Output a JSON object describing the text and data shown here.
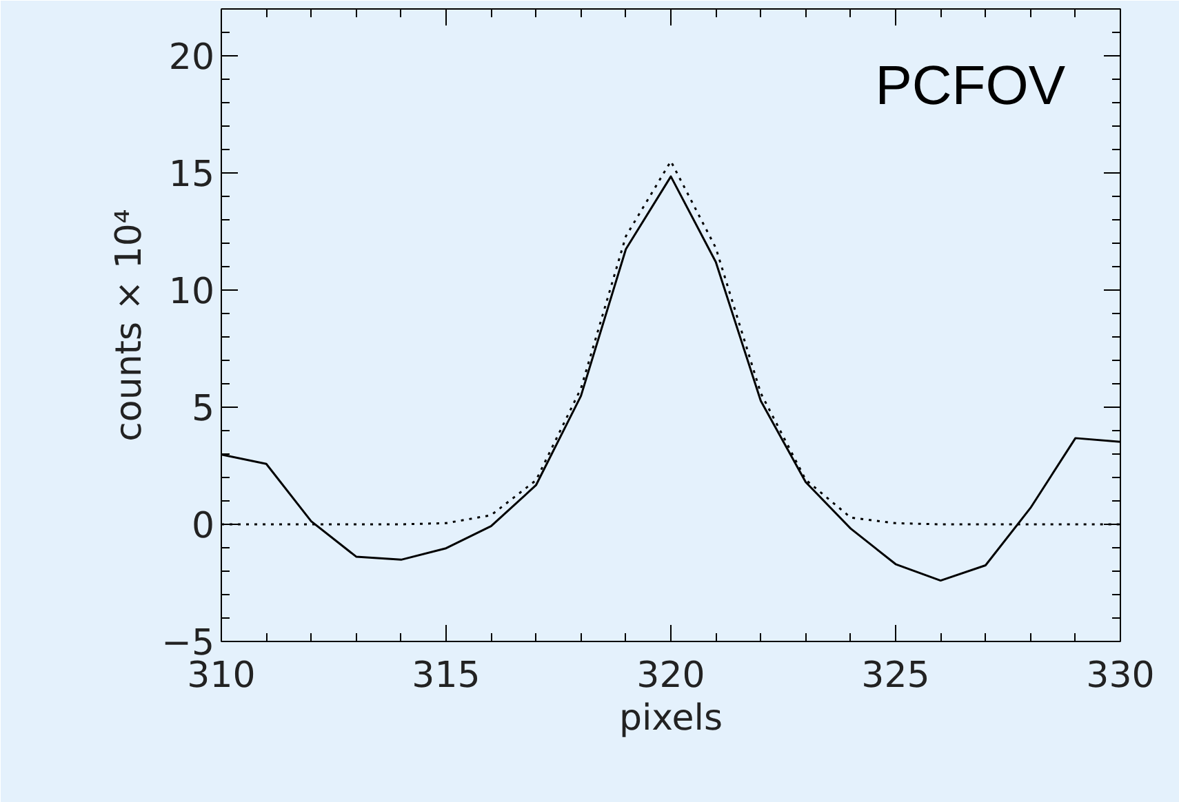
{
  "chart_data": {
    "type": "line",
    "xlabel": "pixels",
    "ylabel": "counts × 10⁴",
    "annotations": [
      "PCFOV"
    ],
    "x": [
      310,
      311,
      312,
      313,
      314,
      315,
      316,
      317,
      318,
      319,
      320,
      321,
      322,
      323,
      324,
      325,
      326,
      327,
      328,
      329,
      330
    ],
    "series": [
      {
        "color": "#000000",
        "line_style": "solid",
        "values": [
          2.98,
          2.58,
          0.13,
          -1.38,
          -1.51,
          -1.02,
          -0.08,
          1.67,
          5.48,
          11.75,
          14.85,
          11.2,
          5.27,
          1.8,
          -0.18,
          -1.7,
          -2.4,
          -1.75,
          0.7,
          3.68,
          3.52
        ]
      },
      {
        "color": "#000000",
        "line_style": "dotted",
        "values": [
          0,
          0,
          0,
          0,
          0,
          0.05,
          0.39,
          1.88,
          5.8,
          12.3,
          15.5,
          11.8,
          5.6,
          1.9,
          0.29,
          0.05,
          0,
          0,
          0,
          0,
          0
        ]
      }
    ],
    "xlim": [
      310,
      330
    ],
    "ylim": [
      -5,
      22
    ],
    "xticks": [
      310,
      315,
      320,
      325,
      330
    ],
    "yticks": [
      -5,
      0,
      5,
      10,
      15,
      20
    ],
    "grid": false,
    "marker": "none"
  }
}
